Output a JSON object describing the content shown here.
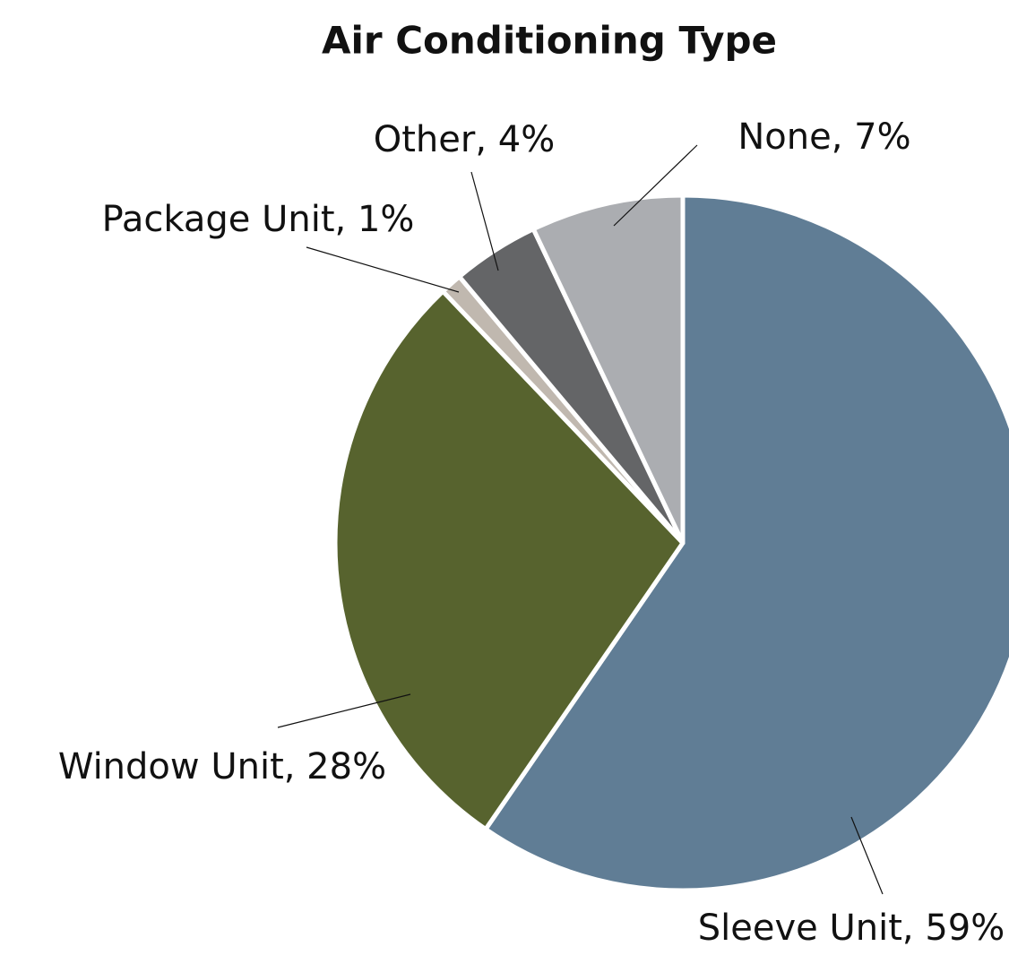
{
  "chart_data": {
    "type": "pie",
    "title": "Air Conditioning Type",
    "values": [
      59,
      28,
      1,
      4,
      7
    ],
    "value_labels": [
      "Sleeve Unit, 59%",
      "Window Unit, 28%",
      "Package Unit, 1%",
      "Other, 4%",
      "None, 7%"
    ],
    "colors": [
      "#607d95",
      "#57632e",
      "#c0b8af",
      "#646567",
      "#abadb1"
    ]
  }
}
